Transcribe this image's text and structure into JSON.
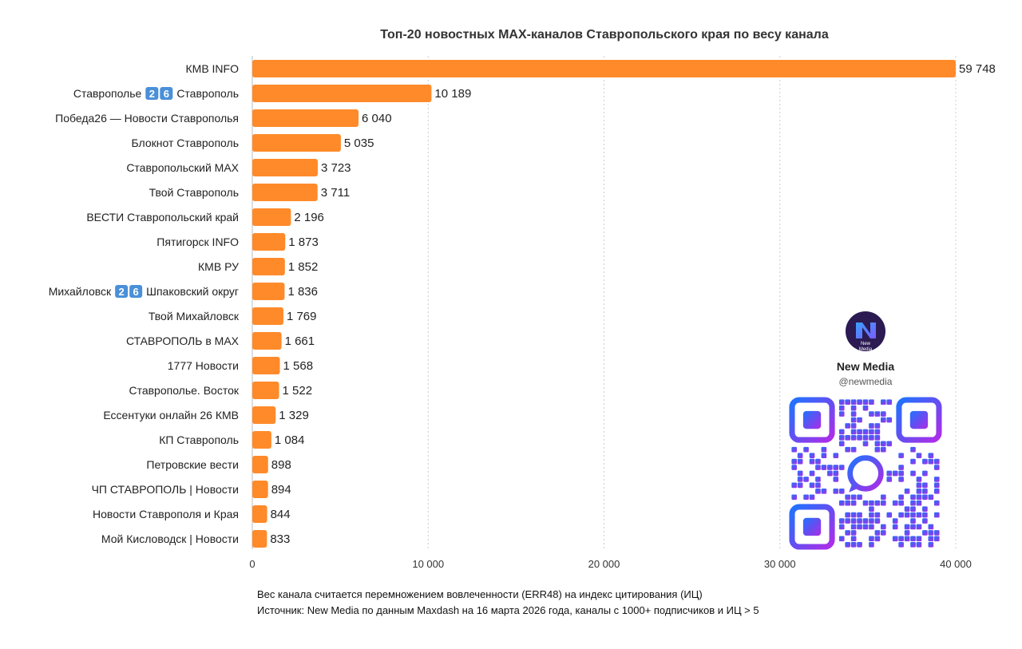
{
  "chart_data": {
    "type": "bar",
    "orientation": "horizontal",
    "title": "Топ-20 новостных MAX-каналов Ставропольского края по весу канала",
    "categories": [
      "КМВ INFO",
      "Ставрополье 2️⃣6️⃣ Ставрополь",
      "Победа26 — Новости Ставрополья",
      "Блокнот Ставрополь",
      "Ставропольский MAX",
      "Твой Ставрополь",
      "ВЕСТИ Ставропольский край",
      "Пятигорск INFO",
      "КМВ РУ",
      "Михайловск 2️⃣6️⃣ Шпаковский округ",
      "Твой Михайловск",
      "СТАВРОПОЛЬ в MAX",
      "1777 Новости",
      "Ставрополье. Восток",
      "Ессентуки онлайн 26 КМВ",
      "КП Ставрополь",
      "Петровские вести",
      "ЧП СТАВРОПОЛЬ | Новости",
      "Новости Ставрополя и Края",
      "Мой Кисловодск | Новости"
    ],
    "values": [
      59748,
      10189,
      6040,
      5035,
      3723,
      3711,
      2196,
      1873,
      1852,
      1836,
      1769,
      1661,
      1568,
      1522,
      1329,
      1084,
      898,
      894,
      844,
      833
    ],
    "value_labels": [
      "59 748",
      "10 189",
      "6 040",
      "5 035",
      "3 723",
      "3 711",
      "2 196",
      "1 873",
      "1 852",
      "1 836",
      "1 769",
      "1 661",
      "1 568",
      "1 522",
      "1 329",
      "1 084",
      "898",
      "894",
      "844",
      "833"
    ],
    "xlim": [
      0,
      40000
    ],
    "x_ticks": [
      0,
      10000,
      20000,
      30000,
      40000
    ],
    "x_tick_labels": [
      "0",
      "10 000",
      "20 000",
      "30 000",
      "40 000"
    ],
    "xlabel": "",
    "ylabel": "",
    "grid": "vertical dotted",
    "legend": "none",
    "bar_color": "#FF8A2A",
    "notes": [
      "Вес канала считается перемножением вовлеченности (ERR48) на индекс цитирования (ИЦ)",
      "Источник: New Media по данным Maxdash на 16 марта 2026 года, каналы с 1000+ подписчиков и ИЦ > 5"
    ]
  },
  "branding": {
    "name": "New Media",
    "handle": "@newmedia",
    "logo_text_1": "New",
    "logo_text_2": "Media",
    "logo_color": "#2B1B52",
    "qr_gradient": [
      "#1F73FF",
      "#6A4BF0",
      "#B02CE8"
    ]
  }
}
